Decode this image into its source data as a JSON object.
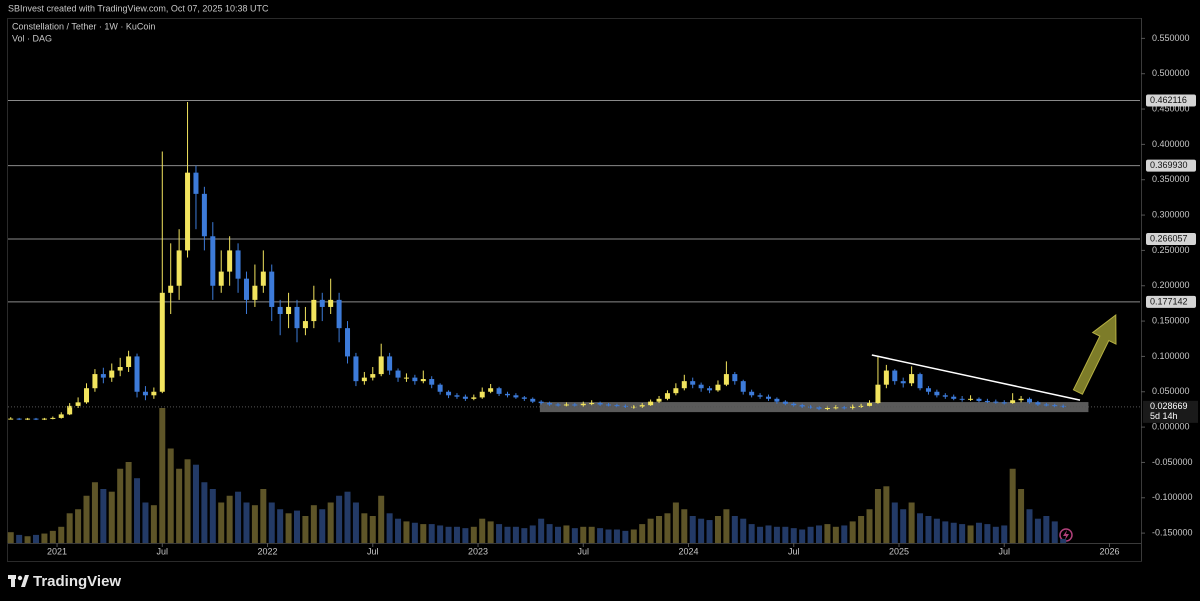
{
  "header": "SBInvest created with TradingView.com, Oct 07, 2025 10:38 UTC",
  "brand": "TradingView",
  "chart_data": {
    "type": "candlestick",
    "title": "Constellation / Tether · 1W · KuCoin",
    "subtitle": "Vol · DAG",
    "up_color": "#f2e45e",
    "down_color": "#3d7bd9",
    "volume_up_color": "#5e5528",
    "volume_down_color": "#233a66",
    "grid": false,
    "xlim": [
      2020.767,
      2026.145
    ],
    "xticks": [
      {
        "value": 2021,
        "label": "2021"
      },
      {
        "value": 2021.5,
        "label": "Jul"
      },
      {
        "value": 2022,
        "label": "2022"
      },
      {
        "value": 2022.5,
        "label": "Jul"
      },
      {
        "value": 2023,
        "label": "2023"
      },
      {
        "value": 2023.5,
        "label": "Jul"
      },
      {
        "value": 2024,
        "label": "2024"
      },
      {
        "value": 2024.5,
        "label": "Jul"
      },
      {
        "value": 2025,
        "label": "2025"
      },
      {
        "value": 2025.5,
        "label": "Jul"
      },
      {
        "value": 2026,
        "label": "2026"
      }
    ],
    "ylim": [
      -0.164,
      0.576
    ],
    "yticks": [
      {
        "value": 0.55,
        "label": "0.550000"
      },
      {
        "value": 0.5,
        "label": "0.500000"
      },
      {
        "value": 0.45,
        "label": "0.450000"
      },
      {
        "value": 0.4,
        "label": "0.400000"
      },
      {
        "value": 0.35,
        "label": "0.350000"
      },
      {
        "value": 0.3,
        "label": "0.300000"
      },
      {
        "value": 0.25,
        "label": "0.250000"
      },
      {
        "value": 0.2,
        "label": "0.200000"
      },
      {
        "value": 0.15,
        "label": "0.150000"
      },
      {
        "value": 0.1,
        "label": "0.100000"
      },
      {
        "value": 0.05,
        "label": "0.050000"
      },
      {
        "value": 0,
        "label": "0.000000"
      },
      {
        "value": -0.05,
        "label": "-0.050000"
      },
      {
        "value": -0.1,
        "label": "-0.100000"
      },
      {
        "value": -0.15,
        "label": "-0.150000"
      }
    ],
    "levels": [
      {
        "value": 0.462116,
        "label": "0.462116"
      },
      {
        "value": 0.36993,
        "label": "0.369930"
      },
      {
        "value": 0.266057,
        "label": "0.266057"
      },
      {
        "value": 0.177142,
        "label": "0.177142"
      }
    ],
    "last_price": {
      "value": 0.028669,
      "label": "0.028669",
      "countdown": "5d 14h"
    },
    "zone": {
      "x": [
        2023.294,
        2025.9
      ],
      "y": [
        0.0212,
        0.0354
      ],
      "color": "#6a6a6a"
    },
    "trendline": {
      "x": [
        2024.871,
        2025.86
      ],
      "y": [
        0.102,
        0.0382
      ],
      "color": "#ffffff"
    },
    "arrow": {
      "x": [
        2025.85,
        2026.03
      ],
      "y": [
        0.0496,
        0.1586
      ],
      "color": "#8b8a2e"
    },
    "vlim": [
      0,
      100
    ],
    "x": [
      2020.78,
      2020.82,
      2020.86,
      2020.9,
      2020.94,
      2020.98,
      2021.02,
      2021.06,
      2021.1,
      2021.14,
      2021.18,
      2021.22,
      2021.26,
      2021.3,
      2021.34,
      2021.38,
      2021.42,
      2021.46,
      2021.5,
      2021.54,
      2021.58,
      2021.62,
      2021.66,
      2021.7,
      2021.74,
      2021.78,
      2021.82,
      2021.86,
      2021.9,
      2021.94,
      2021.98,
      2022.02,
      2022.06,
      2022.1,
      2022.14,
      2022.18,
      2022.22,
      2022.26,
      2022.3,
      2022.34,
      2022.38,
      2022.42,
      2022.46,
      2022.5,
      2022.54,
      2022.58,
      2022.62,
      2022.66,
      2022.7,
      2022.74,
      2022.78,
      2022.82,
      2022.86,
      2022.9,
      2022.94,
      2022.98,
      2023.02,
      2023.06,
      2023.1,
      2023.14,
      2023.18,
      2023.22,
      2023.26,
      2023.3,
      2023.34,
      2023.38,
      2023.42,
      2023.46,
      2023.5,
      2023.54,
      2023.58,
      2023.62,
      2023.66,
      2023.7,
      2023.74,
      2023.78,
      2023.82,
      2023.86,
      2023.9,
      2023.94,
      2023.98,
      2024.02,
      2024.06,
      2024.1,
      2024.14,
      2024.18,
      2024.22,
      2024.26,
      2024.3,
      2024.34,
      2024.38,
      2024.42,
      2024.46,
      2024.5,
      2024.54,
      2024.58,
      2024.62,
      2024.66,
      2024.7,
      2024.74,
      2024.78,
      2024.82,
      2024.86,
      2024.9,
      2024.94,
      2024.98,
      2025.02,
      2025.06,
      2025.1,
      2025.14,
      2025.18,
      2025.22,
      2025.26,
      2025.3,
      2025.34,
      2025.38,
      2025.42,
      2025.46,
      2025.5,
      2025.54,
      2025.58,
      2025.62,
      2025.66,
      2025.7,
      2025.74,
      2025.78
    ],
    "open": [
      0.012,
      0.012,
      0.011,
      0.012,
      0.011,
      0.012,
      0.013,
      0.018,
      0.03,
      0.035,
      0.055,
      0.075,
      0.07,
      0.08,
      0.085,
      0.1,
      0.05,
      0.045,
      0.05,
      0.19,
      0.2,
      0.25,
      0.36,
      0.33,
      0.27,
      0.2,
      0.22,
      0.25,
      0.21,
      0.18,
      0.2,
      0.22,
      0.17,
      0.16,
      0.17,
      0.14,
      0.15,
      0.18,
      0.17,
      0.18,
      0.14,
      0.1,
      0.065,
      0.07,
      0.075,
      0.1,
      0.08,
      0.07,
      0.07,
      0.065,
      0.068,
      0.06,
      0.05,
      0.045,
      0.043,
      0.04,
      0.042,
      0.05,
      0.055,
      0.047,
      0.045,
      0.042,
      0.04,
      0.036,
      0.034,
      0.032,
      0.031,
      0.032,
      0.031,
      0.033,
      0.034,
      0.032,
      0.031,
      0.03,
      0.029,
      0.029,
      0.031,
      0.036,
      0.04,
      0.048,
      0.055,
      0.065,
      0.06,
      0.055,
      0.052,
      0.06,
      0.075,
      0.065,
      0.05,
      0.045,
      0.043,
      0.04,
      0.036,
      0.033,
      0.031,
      0.029,
      0.028,
      0.026,
      0.027,
      0.028,
      0.027,
      0.029,
      0.03,
      0.034,
      0.06,
      0.08,
      0.065,
      0.062,
      0.075,
      0.055,
      0.05,
      0.045,
      0.043,
      0.04,
      0.039,
      0.04,
      0.037,
      0.036,
      0.035,
      0.034,
      0.038,
      0.04,
      0.035,
      0.032,
      0.031,
      0.03
    ],
    "high": [
      0.014,
      0.013,
      0.013,
      0.013,
      0.013,
      0.015,
      0.021,
      0.034,
      0.042,
      0.062,
      0.082,
      0.084,
      0.09,
      0.098,
      0.108,
      0.104,
      0.058,
      0.056,
      0.39,
      0.26,
      0.28,
      0.46,
      0.37,
      0.34,
      0.29,
      0.25,
      0.27,
      0.26,
      0.22,
      0.23,
      0.25,
      0.23,
      0.18,
      0.19,
      0.18,
      0.17,
      0.2,
      0.19,
      0.21,
      0.19,
      0.15,
      0.105,
      0.078,
      0.085,
      0.118,
      0.105,
      0.083,
      0.076,
      0.074,
      0.08,
      0.072,
      0.062,
      0.052,
      0.048,
      0.046,
      0.046,
      0.056,
      0.061,
      0.057,
      0.05,
      0.048,
      0.044,
      0.042,
      0.038,
      0.036,
      0.034,
      0.035,
      0.034,
      0.036,
      0.038,
      0.036,
      0.034,
      0.033,
      0.032,
      0.031,
      0.034,
      0.039,
      0.044,
      0.052,
      0.062,
      0.074,
      0.07,
      0.063,
      0.058,
      0.066,
      0.093,
      0.078,
      0.067,
      0.053,
      0.048,
      0.046,
      0.042,
      0.038,
      0.035,
      0.033,
      0.031,
      0.03,
      0.03,
      0.031,
      0.03,
      0.032,
      0.033,
      0.038,
      0.1,
      0.088,
      0.082,
      0.07,
      0.086,
      0.077,
      0.058,
      0.053,
      0.048,
      0.046,
      0.044,
      0.045,
      0.042,
      0.04,
      0.039,
      0.038,
      0.048,
      0.044,
      0.042,
      0.037,
      0.034,
      0.033,
      0.032
    ],
    "low": [
      0.011,
      0.01,
      0.01,
      0.01,
      0.01,
      0.011,
      0.012,
      0.017,
      0.027,
      0.033,
      0.05,
      0.062,
      0.064,
      0.072,
      0.078,
      0.042,
      0.038,
      0.04,
      0.048,
      0.16,
      0.18,
      0.24,
      0.28,
      0.25,
      0.18,
      0.19,
      0.2,
      0.19,
      0.16,
      0.17,
      0.19,
      0.15,
      0.13,
      0.14,
      0.12,
      0.13,
      0.14,
      0.15,
      0.16,
      0.12,
      0.09,
      0.058,
      0.06,
      0.066,
      0.072,
      0.074,
      0.064,
      0.064,
      0.06,
      0.062,
      0.055,
      0.046,
      0.041,
      0.04,
      0.037,
      0.038,
      0.04,
      0.048,
      0.044,
      0.042,
      0.04,
      0.037,
      0.034,
      0.032,
      0.03,
      0.029,
      0.029,
      0.029,
      0.029,
      0.031,
      0.03,
      0.029,
      0.028,
      0.027,
      0.026,
      0.027,
      0.03,
      0.034,
      0.038,
      0.045,
      0.052,
      0.055,
      0.05,
      0.048,
      0.05,
      0.058,
      0.06,
      0.046,
      0.042,
      0.04,
      0.037,
      0.033,
      0.031,
      0.029,
      0.027,
      0.026,
      0.024,
      0.024,
      0.025,
      0.025,
      0.025,
      0.027,
      0.028,
      0.033,
      0.055,
      0.06,
      0.056,
      0.058,
      0.052,
      0.046,
      0.042,
      0.04,
      0.038,
      0.036,
      0.037,
      0.035,
      0.034,
      0.033,
      0.032,
      0.033,
      0.035,
      0.033,
      0.03,
      0.029,
      0.028,
      0.027
    ],
    "close": [
      0.012,
      0.011,
      0.012,
      0.011,
      0.012,
      0.013,
      0.018,
      0.03,
      0.035,
      0.055,
      0.075,
      0.07,
      0.08,
      0.085,
      0.1,
      0.05,
      0.045,
      0.05,
      0.19,
      0.2,
      0.25,
      0.36,
      0.33,
      0.27,
      0.2,
      0.22,
      0.25,
      0.21,
      0.18,
      0.2,
      0.22,
      0.17,
      0.16,
      0.17,
      0.14,
      0.15,
      0.18,
      0.17,
      0.18,
      0.14,
      0.1,
      0.065,
      0.07,
      0.075,
      0.1,
      0.08,
      0.07,
      0.07,
      0.065,
      0.068,
      0.06,
      0.05,
      0.045,
      0.043,
      0.04,
      0.042,
      0.05,
      0.055,
      0.047,
      0.045,
      0.042,
      0.04,
      0.036,
      0.034,
      0.032,
      0.031,
      0.032,
      0.031,
      0.033,
      0.034,
      0.032,
      0.031,
      0.03,
      0.029,
      0.029,
      0.031,
      0.036,
      0.04,
      0.048,
      0.055,
      0.065,
      0.06,
      0.055,
      0.052,
      0.06,
      0.075,
      0.065,
      0.05,
      0.045,
      0.043,
      0.04,
      0.036,
      0.033,
      0.031,
      0.029,
      0.028,
      0.026,
      0.027,
      0.028,
      0.027,
      0.029,
      0.03,
      0.034,
      0.06,
      0.08,
      0.065,
      0.062,
      0.075,
      0.055,
      0.05,
      0.045,
      0.043,
      0.04,
      0.039,
      0.04,
      0.037,
      0.036,
      0.035,
      0.034,
      0.038,
      0.04,
      0.035,
      0.032,
      0.031,
      0.03,
      0.028669
    ],
    "volume": [
      8,
      6,
      5,
      6,
      7,
      9,
      12,
      22,
      25,
      35,
      45,
      40,
      38,
      55,
      60,
      48,
      30,
      28,
      100,
      70,
      55,
      62,
      58,
      45,
      40,
      30,
      35,
      38,
      30,
      28,
      40,
      30,
      25,
      22,
      24,
      20,
      28,
      25,
      30,
      35,
      38,
      30,
      22,
      20,
      35,
      22,
      18,
      16,
      15,
      14,
      14,
      13,
      12,
      12,
      11,
      12,
      18,
      16,
      14,
      12,
      12,
      11,
      13,
      18,
      14,
      12,
      13,
      11,
      12,
      12,
      11,
      10,
      10,
      9,
      10,
      14,
      18,
      20,
      22,
      30,
      25,
      20,
      18,
      17,
      20,
      25,
      20,
      18,
      14,
      12,
      13,
      12,
      12,
      11,
      10,
      12,
      13,
      14,
      12,
      13,
      16,
      20,
      25,
      40,
      42,
      30,
      25,
      30,
      22,
      20,
      18,
      16,
      15,
      14,
      13,
      15,
      14,
      12,
      13,
      55,
      40,
      25,
      18,
      20,
      16,
      3
    ]
  }
}
